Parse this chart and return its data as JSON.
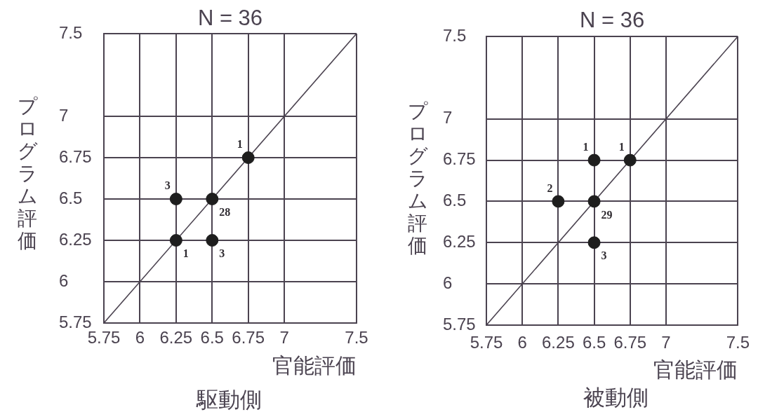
{
  "chart_data": [
    {
      "type": "scatter",
      "title": "N = 36",
      "xlabel": "官能評価",
      "ylabel": "プログラム評価",
      "xlim": [
        5.75,
        7.5
      ],
      "xticks": [
        5.75,
        6,
        6.25,
        6.5,
        6.75,
        7,
        7.5
      ],
      "ylim": [
        5.75,
        7.5
      ],
      "yticks": [
        5.75,
        6,
        6.25,
        6.5,
        6.75,
        7,
        7.5
      ],
      "grid": true,
      "legend": false,
      "series": [
        {
          "color": "#1e1e1e",
          "marker": "circle",
          "x": [
            6.75,
            6.25,
            6.5,
            6.25,
            6.5
          ],
          "values": [
            6.75,
            6.5,
            6.5,
            6.25,
            6.25
          ]
        },
        {
          "type": "line",
          "color": "#4b4350",
          "marker": "none",
          "x": [
            5.75,
            7.5
          ],
          "values": [
            5.75,
            7.5
          ]
        }
      ],
      "annotations": [
        {
          "text": "1",
          "x": 6.75,
          "y": 6.75
        },
        {
          "text": "3",
          "x": 6.25,
          "y": 6.5
        },
        {
          "text": "28",
          "x": 6.5,
          "y": 6.5
        },
        {
          "text": "1",
          "x": 6.25,
          "y": 6.25
        },
        {
          "text": "3",
          "x": 6.5,
          "y": 6.25
        },
        "駆動側"
      ]
    },
    {
      "type": "scatter",
      "title": "N = 36",
      "xlabel": "官能評価",
      "ylabel": "プログラム評価",
      "xlim": [
        5.75,
        7.5
      ],
      "xticks": [
        5.75,
        6,
        6.25,
        6.5,
        6.75,
        7,
        7.5
      ],
      "ylim": [
        5.75,
        7.5
      ],
      "yticks": [
        5.75,
        6,
        6.25,
        6.5,
        6.75,
        7,
        7.5
      ],
      "grid": true,
      "legend": false,
      "series": [
        {
          "color": "#1e1e1e",
          "marker": "circle",
          "x": [
            6.5,
            6.75,
            6.25,
            6.5,
            6.5
          ],
          "values": [
            6.75,
            6.75,
            6.5,
            6.5,
            6.25
          ]
        },
        {
          "type": "line",
          "color": "#4b4350",
          "marker": "none",
          "x": [
            5.75,
            7.5
          ],
          "values": [
            5.75,
            7.5
          ]
        }
      ],
      "annotations": [
        {
          "text": "1",
          "x": 6.5,
          "y": 6.75
        },
        {
          "text": "1",
          "x": 6.75,
          "y": 6.75
        },
        {
          "text": "2",
          "x": 6.25,
          "y": 6.5
        },
        {
          "text": "29",
          "x": 6.5,
          "y": 6.5
        },
        {
          "text": "3",
          "x": 6.5,
          "y": 6.25
        },
        "被動側"
      ]
    }
  ]
}
